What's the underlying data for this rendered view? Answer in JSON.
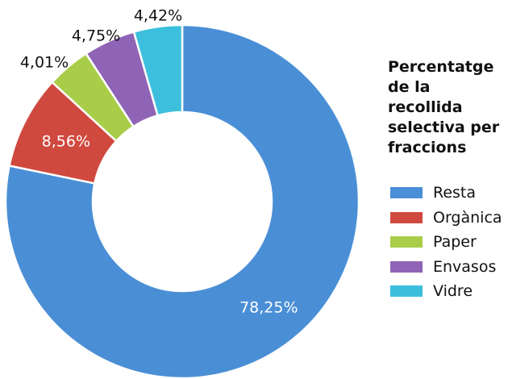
{
  "chart_data": {
    "type": "pie",
    "donut": true,
    "title": "Percentatge\nde la recollida\nselectiva per\nfraccions",
    "series": [
      {
        "name": "Resta",
        "value": 78.25,
        "label": "78,25%",
        "color": "#4a8fd6"
      },
      {
        "name": "Orgànica",
        "value": 8.56,
        "label": "8,56%",
        "color": "#d0493f"
      },
      {
        "name": "Paper",
        "value": 4.01,
        "label": "4,01%",
        "color": "#a9cd48"
      },
      {
        "name": "Envasos",
        "value": 4.75,
        "label": "4,75%",
        "color": "#8f63b5"
      },
      {
        "name": "Vidre",
        "value": 4.42,
        "label": "4,42%",
        "color": "#3cbfdc"
      }
    ],
    "legend_placement": "right"
  }
}
